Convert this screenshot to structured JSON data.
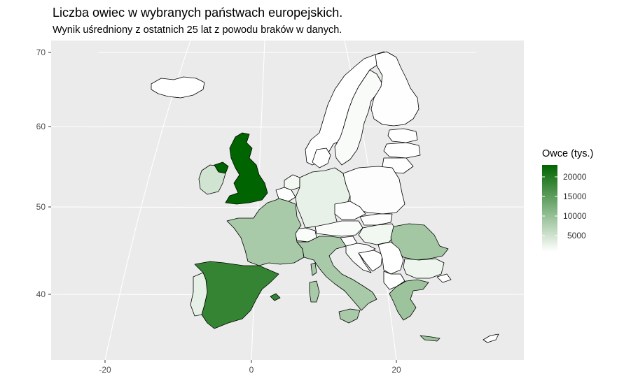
{
  "title": "Liczba owiec w wybranych państwach europejskich.",
  "subtitle": "Wynik uśredniony z ostatnich 25 lat z powodu braków w danych.",
  "axes": {
    "x_ticks": [
      "-20",
      "0",
      "20"
    ],
    "y_ticks": [
      "40",
      "50",
      "60",
      "70"
    ]
  },
  "legend": {
    "title": "Owce (tys.)",
    "labels": [
      "20000",
      "15000",
      "10000",
      "5000"
    ],
    "color_low": "#ffffff",
    "color_high": "#006400"
  },
  "chart_data": {
    "type": "heatmap",
    "x_ticks": [
      -20,
      0,
      20
    ],
    "y_ticks": [
      40,
      50,
      60,
      70
    ],
    "legend_ticks": [
      5000,
      10000,
      15000,
      20000
    ],
    "regions": [
      {
        "name": "United Kingdom",
        "value": 22000
      },
      {
        "name": "Spain",
        "value": 17500
      },
      {
        "name": "Greece",
        "value": 8500
      },
      {
        "name": "Romania",
        "value": 8000
      },
      {
        "name": "Italy",
        "value": 7500
      },
      {
        "name": "France",
        "value": 7500
      },
      {
        "name": "Ireland",
        "value": 4000
      },
      {
        "name": "Portugal",
        "value": 2200
      },
      {
        "name": "Germany",
        "value": 2000
      },
      {
        "name": "Bulgaria",
        "value": 1500
      },
      {
        "name": "Netherlands",
        "value": 1000
      },
      {
        "name": "Sweden",
        "value": 500
      },
      {
        "name": "Austria",
        "value": 400
      },
      {
        "name": "Hungary",
        "value": 1200
      },
      {
        "name": "Poland",
        "value": 300
      },
      {
        "name": "Czech Republic",
        "value": 200
      },
      {
        "name": "Finland",
        "value": 100
      },
      {
        "name": "Belgium",
        "value": 150
      },
      {
        "name": "Denmark",
        "value": 150
      },
      {
        "name": "Norway",
        "value": 0
      },
      {
        "name": "Slovakia",
        "value": 300
      },
      {
        "name": "Croatia",
        "value": 600
      },
      {
        "name": "Slovenia",
        "value": 100
      },
      {
        "name": "Switzerland",
        "value": 400
      },
      {
        "name": "Estonia",
        "value": 50
      },
      {
        "name": "Latvia",
        "value": 50
      },
      {
        "name": "Lithuania",
        "value": 50
      },
      {
        "name": "Serbia",
        "value": 0
      },
      {
        "name": "Bosnia",
        "value": 0
      },
      {
        "name": "Cyprus",
        "value": 300
      },
      {
        "name": "Iceland",
        "value": 0
      },
      {
        "name": "Sardinia",
        "value": 7500
      },
      {
        "name": "Corsica",
        "value": 7500
      },
      {
        "name": "Sicily",
        "value": 7500
      },
      {
        "name": "Crete",
        "value": 8500
      },
      {
        "name": "Northern Ireland",
        "value": 22000
      }
    ]
  }
}
